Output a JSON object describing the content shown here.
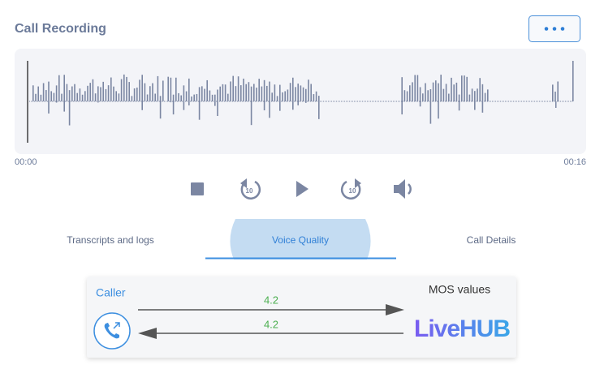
{
  "header": {
    "title": "Call Recording"
  },
  "player": {
    "start_time": "00:00",
    "end_time": "00:16"
  },
  "tabs": [
    "Transcripts and logs",
    "Voice Quality",
    "Call Details"
  ],
  "quality": {
    "caller_label": "Caller",
    "mos_label": "MOS values",
    "outbound_mos": 4.2,
    "inbound_mos": 4.2,
    "logo": "LiveHUB"
  }
}
